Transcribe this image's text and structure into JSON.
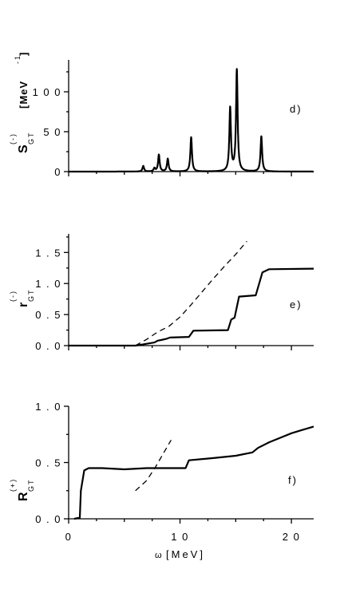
{
  "chart_data": [
    {
      "type": "line",
      "panel": "d)",
      "ylabel": {
        "main": "S",
        "sup": "(-)",
        "sub": "GT",
        "unit": "[MeV",
        "unit_sup": "-1",
        "unit_close": "]"
      },
      "xlim": [
        0,
        22
      ],
      "ylim": [
        0,
        140
      ],
      "yticks": [
        0,
        50,
        100
      ],
      "ytick_labels": [
        "0",
        "5 0",
        "1 0 0"
      ],
      "xticks": [
        0,
        10,
        20
      ],
      "series": [
        {
          "style": "solid",
          "peaks": [
            {
              "x": 6.7,
              "height": 7
            },
            {
              "x": 7.7,
              "height": 4
            },
            {
              "x": 8.1,
              "height": 21
            },
            {
              "x": 8.9,
              "height": 16
            },
            {
              "x": 11.0,
              "height": 43
            },
            {
              "x": 14.5,
              "height": 79
            },
            {
              "x": 15.1,
              "height": 127
            },
            {
              "x": 17.3,
              "height": 44
            }
          ]
        }
      ]
    },
    {
      "type": "line",
      "panel": "e)",
      "ylabel": {
        "main": "r",
        "sup": "(-)",
        "sub": "GT"
      },
      "xlim": [
        0,
        22
      ],
      "ylim": [
        0,
        1.8
      ],
      "yticks": [
        0,
        0.5,
        1.0,
        1.5
      ],
      "ytick_labels": [
        "0 . 0",
        "0 . 5",
        "1 . 0",
        "1 . 5"
      ],
      "xticks": [
        0,
        10,
        20
      ],
      "series": [
        {
          "style": "solid",
          "x": [
            0,
            6.0,
            6.7,
            7.0,
            7.7,
            8.0,
            8.3,
            8.8,
            9.1,
            10.8,
            11.2,
            14.3,
            14.6,
            14.9,
            15.3,
            16.8,
            17.4,
            18.0,
            22.0
          ],
          "y": [
            0,
            0,
            0.02,
            0.03,
            0.05,
            0.08,
            0.09,
            0.11,
            0.13,
            0.14,
            0.24,
            0.25,
            0.42,
            0.45,
            0.79,
            0.81,
            1.18,
            1.23,
            1.24
          ]
        },
        {
          "style": "dashed",
          "x": [
            6.0,
            7.0,
            8.0,
            9.0,
            10.0,
            11.0,
            12.0,
            13.0,
            14.0,
            15.0,
            16.0
          ],
          "y": [
            0.0,
            0.1,
            0.22,
            0.31,
            0.46,
            0.66,
            0.87,
            1.08,
            1.28,
            1.47,
            1.68
          ]
        }
      ]
    },
    {
      "type": "line",
      "panel": "f)",
      "ylabel": {
        "main": "R",
        "sup": "(+)",
        "sub": "GT"
      },
      "xlabel": {
        "symbol": "ω",
        "text": "[MeV]"
      },
      "xlim": [
        0,
        22
      ],
      "ylim": [
        0,
        1.0
      ],
      "yticks": [
        0,
        0.5,
        1.0
      ],
      "ytick_labels": [
        "0 . 0",
        "0 . 5",
        "1 . 0"
      ],
      "xticks": [
        0,
        10,
        20
      ],
      "xtick_labels": [
        "0",
        "1 0",
        "2 0"
      ],
      "series": [
        {
          "style": "solid",
          "x": [
            0.5,
            1.0,
            1.1,
            1.4,
            1.8,
            3.0,
            5.0,
            7.0,
            9.0,
            10.5,
            10.8,
            13.0,
            15.0,
            16.5,
            17.0,
            18.0,
            19.0,
            20.0,
            21.0,
            22.0
          ],
          "y": [
            0.0,
            0.01,
            0.25,
            0.43,
            0.45,
            0.45,
            0.44,
            0.45,
            0.45,
            0.45,
            0.52,
            0.54,
            0.56,
            0.59,
            0.63,
            0.68,
            0.72,
            0.76,
            0.79,
            0.82
          ]
        },
        {
          "style": "dashed",
          "x": [
            6.0,
            7.0,
            7.8,
            8.5,
            9.2
          ],
          "y": [
            0.25,
            0.34,
            0.46,
            0.58,
            0.7
          ]
        }
      ]
    }
  ]
}
